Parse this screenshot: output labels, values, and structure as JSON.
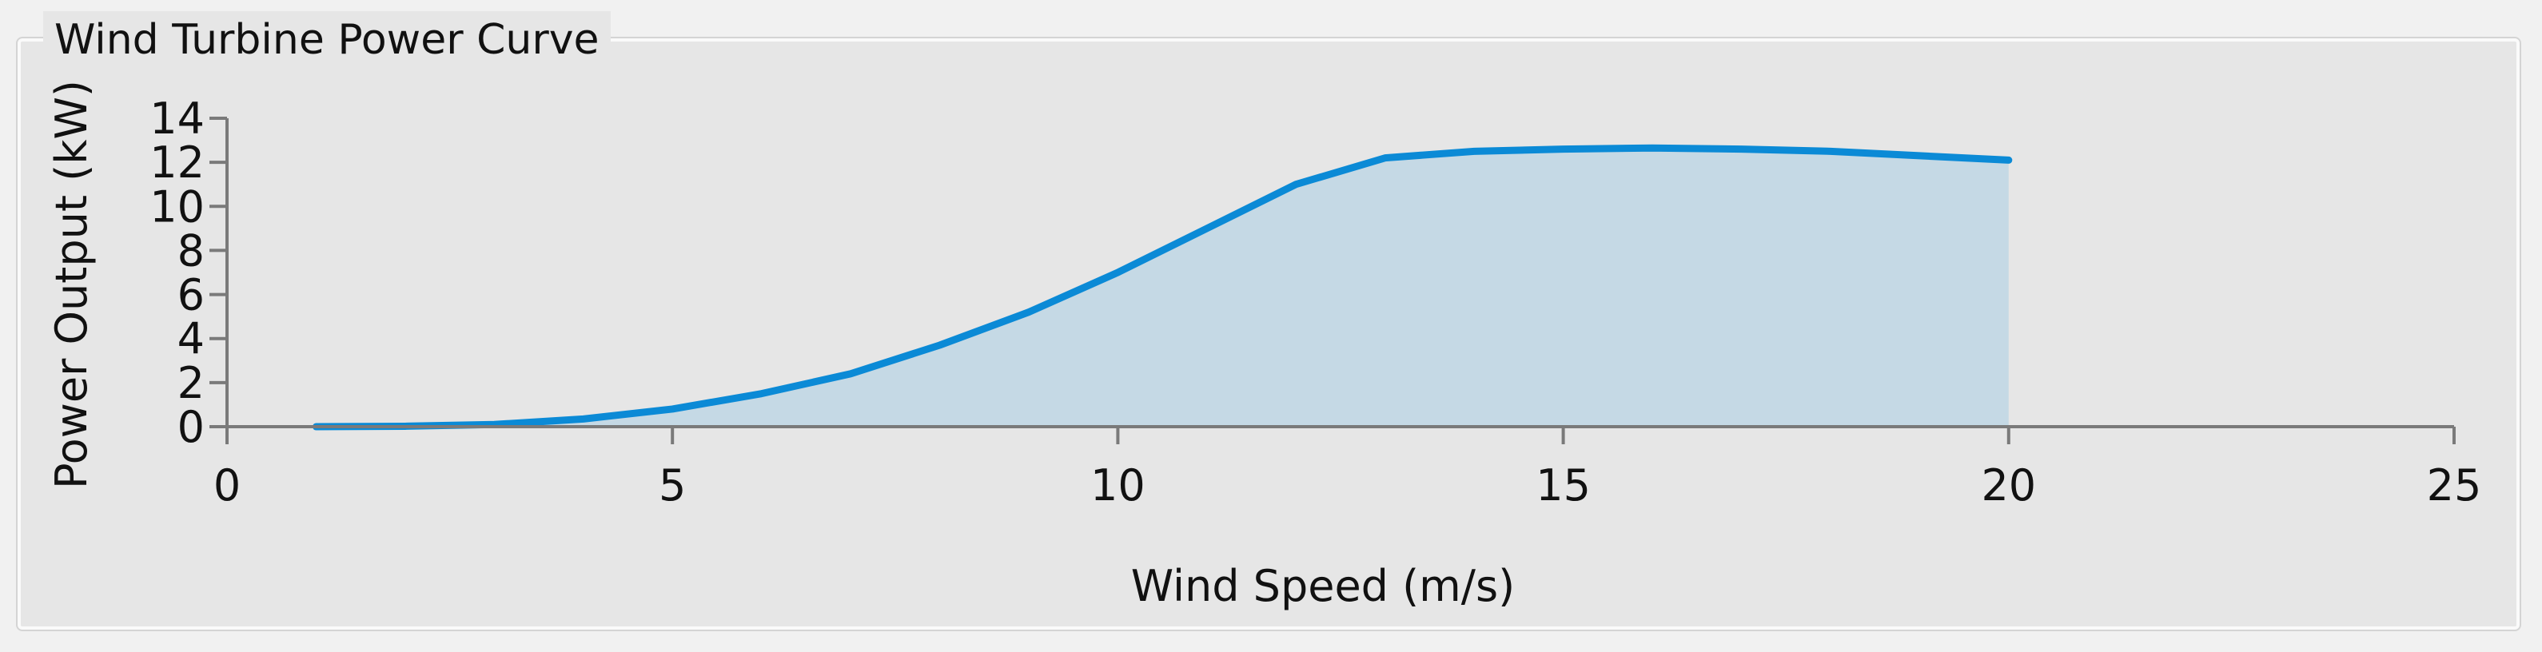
{
  "panel": {
    "title": "Wind Turbine Power Curve"
  },
  "colors": {
    "line": "#0b8ad6",
    "area": "#c5d9e5",
    "axis": "#7a7a7a"
  },
  "chart_data": {
    "type": "area",
    "title": "Wind Turbine Power Curve",
    "xlabel": "Wind Speed (m/s)",
    "ylabel": "Power Output (kW)",
    "xlim": [
      0,
      25
    ],
    "ylim": [
      0,
      14
    ],
    "xticks": [
      0,
      5,
      10,
      15,
      20,
      25
    ],
    "yticks": [
      0,
      2,
      4,
      6,
      8,
      10,
      12,
      14
    ],
    "grid": false,
    "legend": "none",
    "x": [
      1,
      2,
      3,
      4,
      5,
      6,
      7,
      8,
      9,
      10,
      11,
      12,
      13,
      14,
      15,
      16,
      17,
      18,
      19,
      20
    ],
    "y": [
      0.0,
      0.02,
      0.1,
      0.35,
      0.8,
      1.5,
      2.4,
      3.7,
      5.2,
      7.0,
      9.0,
      11.0,
      12.2,
      12.5,
      12.6,
      12.65,
      12.6,
      12.5,
      12.3,
      12.1
    ]
  }
}
